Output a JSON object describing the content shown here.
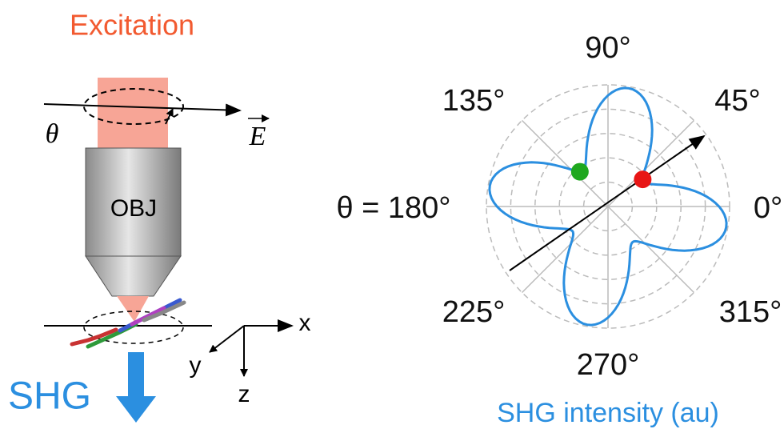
{
  "excitation_label": "Excitation",
  "objective_label": "OBJ",
  "theta_symbol": "θ",
  "field_symbol": "E",
  "axes": {
    "x": "x",
    "y": "y",
    "z": "z"
  },
  "output_label": "SHG",
  "polar": {
    "angle_labels": [
      "90°",
      "45°",
      "135°",
      "θ = 180°",
      "0°",
      "225°",
      "315°",
      "270°"
    ],
    "caption": "SHG intensity (au)"
  }
}
